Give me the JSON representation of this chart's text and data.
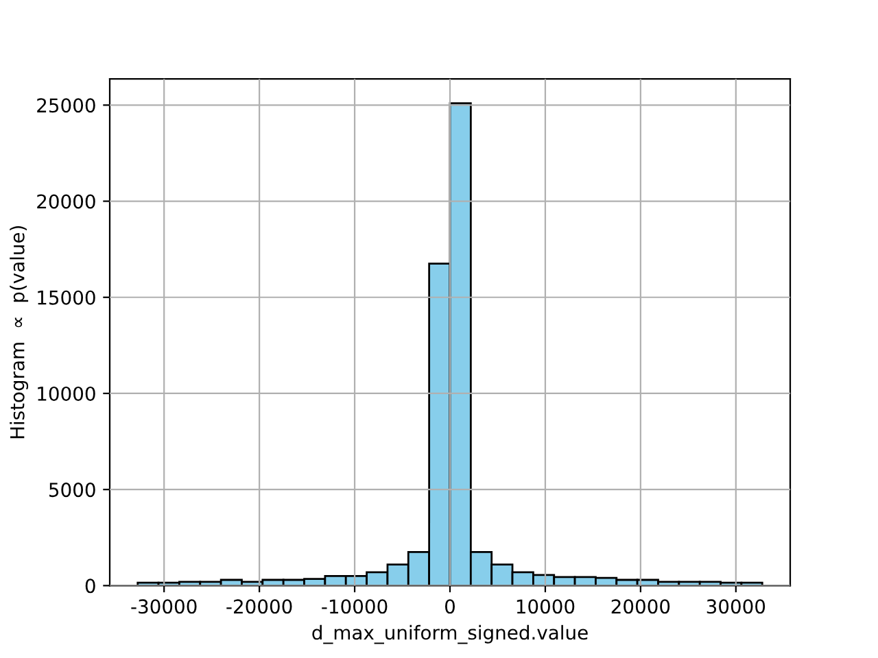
{
  "chart_data": {
    "type": "histogram",
    "xlabel": "d_max_uniform_signed.value",
    "ylabel": "Histogram  ∝  p(value)",
    "bins": [
      -32768,
      -30584,
      -28399,
      -26215,
      -24030,
      -21846,
      -19661,
      -17477,
      -15292,
      -13108,
      -10923,
      -8739,
      -6554,
      -4370,
      -2185,
      0,
      2184,
      4369,
      6553,
      8738,
      10922,
      13107,
      15291,
      17476,
      19660,
      21845,
      24029,
      26214,
      28398,
      30583,
      32767
    ],
    "values": [
      150,
      150,
      200,
      200,
      300,
      200,
      300,
      300,
      350,
      500,
      500,
      700,
      1100,
      1750,
      16750,
      25100,
      1750,
      1100,
      700,
      550,
      450,
      450,
      400,
      300,
      300,
      200,
      200,
      200,
      150,
      150
    ],
    "color": "#87ceeb",
    "xlim": [
      -35700,
      35700
    ],
    "ylim": [
      0,
      26360
    ],
    "xticks": [
      -30000,
      -20000,
      -10000,
      0,
      10000,
      20000,
      30000
    ],
    "yticks": [
      0,
      5000,
      10000,
      15000,
      20000,
      25000
    ],
    "grid": true
  }
}
